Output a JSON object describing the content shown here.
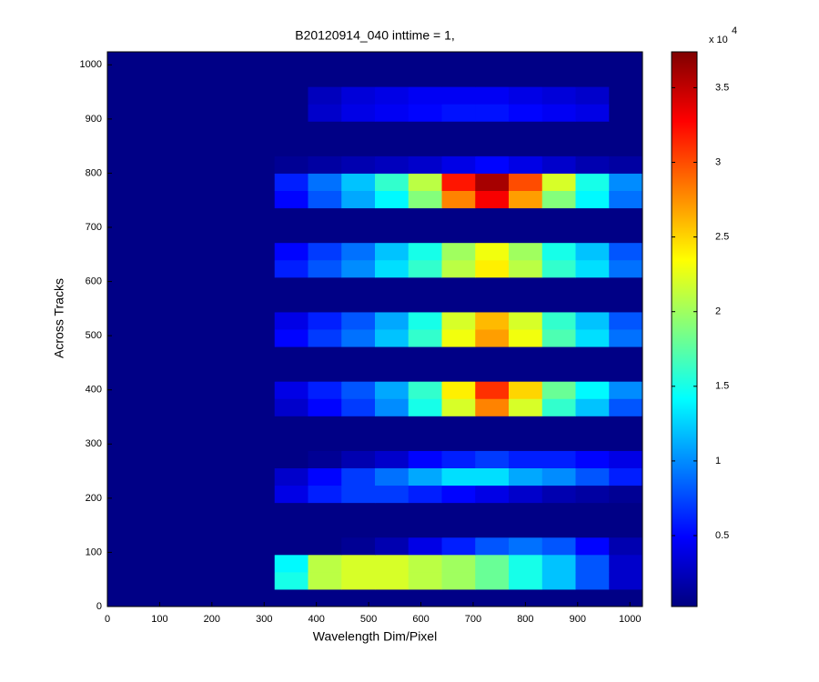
{
  "chart_data": {
    "type": "heatmap",
    "title": "B20120914_040 inttime = 1,",
    "xlabel": "Wavelength Dim/Pixel",
    "ylabel": "Across Tracks",
    "colormap": "jet",
    "colorbar_multiplier": "x 10",
    "colorbar_exponent": "4",
    "clim": [
      0.025,
      3.74
    ],
    "cticks": [
      0.5,
      1,
      1.5,
      2,
      2.5,
      3,
      3.5
    ],
    "xlim": [
      0,
      1024
    ],
    "ylim": [
      0,
      1024
    ],
    "xticks": [
      0,
      100,
      200,
      300,
      400,
      500,
      600,
      700,
      800,
      900,
      1000
    ],
    "yticks": [
      0,
      100,
      200,
      300,
      400,
      500,
      600,
      700,
      800,
      900,
      1000
    ],
    "x": [
      32,
      96,
      160,
      224,
      288,
      352,
      416,
      480,
      544,
      608,
      672,
      736,
      800,
      864,
      928,
      992
    ],
    "y": [
      16,
      48,
      80,
      112,
      144,
      176,
      208,
      240,
      272,
      304,
      336,
      368,
      400,
      432,
      464,
      496,
      528,
      560,
      592,
      624,
      656,
      688,
      720,
      752,
      784,
      816,
      848,
      880,
      912,
      944,
      976,
      1008
    ],
    "z": [
      [
        0.05,
        0.05,
        0.05,
        0.05,
        0.05,
        0.05,
        0.05,
        0.05,
        0.05,
        0.05,
        0.05,
        0.05,
        0.05,
        0.05,
        0.05,
        0.05
      ],
      [
        0.05,
        0.05,
        0.05,
        0.05,
        0.05,
        1.5,
        2.1,
        2.2,
        2.2,
        2.1,
        2.0,
        1.8,
        1.5,
        1.2,
        0.8,
        0.3
      ],
      [
        0.05,
        0.05,
        0.05,
        0.05,
        0.05,
        1.4,
        2.1,
        2.2,
        2.2,
        2.1,
        2.0,
        1.8,
        1.5,
        1.2,
        0.8,
        0.3
      ],
      [
        0.05,
        0.05,
        0.05,
        0.05,
        0.05,
        0.05,
        0.05,
        0.1,
        0.2,
        0.4,
        0.6,
        0.8,
        0.9,
        0.8,
        0.5,
        0.2
      ],
      [
        0.05,
        0.05,
        0.05,
        0.05,
        0.05,
        0.05,
        0.05,
        0.05,
        0.05,
        0.05,
        0.05,
        0.05,
        0.05,
        0.05,
        0.05,
        0.05
      ],
      [
        0.05,
        0.05,
        0.05,
        0.05,
        0.05,
        0.05,
        0.05,
        0.05,
        0.05,
        0.05,
        0.05,
        0.05,
        0.05,
        0.05,
        0.05,
        0.05
      ],
      [
        0.05,
        0.05,
        0.05,
        0.05,
        0.05,
        0.4,
        0.6,
        0.7,
        0.7,
        0.6,
        0.5,
        0.4,
        0.3,
        0.2,
        0.15,
        0.1
      ],
      [
        0.05,
        0.05,
        0.05,
        0.05,
        0.05,
        0.3,
        0.5,
        0.7,
        0.9,
        1.1,
        1.3,
        1.3,
        1.1,
        1.0,
        0.8,
        0.6
      ],
      [
        0.05,
        0.05,
        0.05,
        0.05,
        0.05,
        0.05,
        0.1,
        0.2,
        0.3,
        0.5,
        0.6,
        0.7,
        0.6,
        0.6,
        0.5,
        0.4
      ],
      [
        0.05,
        0.05,
        0.05,
        0.05,
        0.05,
        0.05,
        0.05,
        0.05,
        0.05,
        0.05,
        0.05,
        0.05,
        0.05,
        0.05,
        0.05,
        0.05
      ],
      [
        0.05,
        0.05,
        0.05,
        0.05,
        0.05,
        0.05,
        0.05,
        0.05,
        0.05,
        0.05,
        0.05,
        0.05,
        0.05,
        0.05,
        0.05,
        0.05
      ],
      [
        0.05,
        0.05,
        0.05,
        0.05,
        0.05,
        0.3,
        0.5,
        0.7,
        1.0,
        1.5,
        2.2,
        2.8,
        2.2,
        1.6,
        1.2,
        0.8
      ],
      [
        0.05,
        0.05,
        0.05,
        0.05,
        0.05,
        0.4,
        0.6,
        0.8,
        1.1,
        1.6,
        2.4,
        3.1,
        2.5,
        1.8,
        1.4,
        1.0
      ],
      [
        0.05,
        0.05,
        0.05,
        0.05,
        0.05,
        0.05,
        0.05,
        0.05,
        0.05,
        0.05,
        0.05,
        0.05,
        0.05,
        0.05,
        0.05,
        0.05
      ],
      [
        0.05,
        0.05,
        0.05,
        0.05,
        0.05,
        0.05,
        0.05,
        0.05,
        0.05,
        0.05,
        0.05,
        0.05,
        0.05,
        0.05,
        0.05,
        0.05
      ],
      [
        0.05,
        0.05,
        0.05,
        0.05,
        0.05,
        0.5,
        0.7,
        0.9,
        1.2,
        1.6,
        2.3,
        2.7,
        2.3,
        1.7,
        1.3,
        0.9
      ],
      [
        0.05,
        0.05,
        0.05,
        0.05,
        0.05,
        0.4,
        0.6,
        0.8,
        1.1,
        1.5,
        2.2,
        2.6,
        2.2,
        1.6,
        1.2,
        0.8
      ],
      [
        0.05,
        0.05,
        0.05,
        0.05,
        0.05,
        0.05,
        0.05,
        0.05,
        0.05,
        0.05,
        0.05,
        0.05,
        0.05,
        0.05,
        0.05,
        0.05
      ],
      [
        0.05,
        0.05,
        0.05,
        0.05,
        0.05,
        0.05,
        0.05,
        0.05,
        0.05,
        0.05,
        0.05,
        0.05,
        0.05,
        0.05,
        0.05,
        0.05
      ],
      [
        0.05,
        0.05,
        0.05,
        0.05,
        0.05,
        0.6,
        0.8,
        1.0,
        1.3,
        1.6,
        2.1,
        2.4,
        2.1,
        1.6,
        1.3,
        0.9
      ],
      [
        0.05,
        0.05,
        0.05,
        0.05,
        0.05,
        0.5,
        0.7,
        0.9,
        1.2,
        1.5,
        2.0,
        2.3,
        2.0,
        1.5,
        1.2,
        0.8
      ],
      [
        0.05,
        0.05,
        0.05,
        0.05,
        0.05,
        0.05,
        0.05,
        0.05,
        0.05,
        0.05,
        0.05,
        0.05,
        0.05,
        0.05,
        0.05,
        0.05
      ],
      [
        0.05,
        0.05,
        0.05,
        0.05,
        0.05,
        0.05,
        0.05,
        0.05,
        0.05,
        0.05,
        0.05,
        0.05,
        0.05,
        0.05,
        0.05,
        0.05
      ],
      [
        0.05,
        0.05,
        0.05,
        0.05,
        0.05,
        0.5,
        0.8,
        1.1,
        1.4,
        1.9,
        2.8,
        3.3,
        2.7,
        1.9,
        1.4,
        0.9
      ],
      [
        0.05,
        0.05,
        0.05,
        0.05,
        0.05,
        0.6,
        0.9,
        1.2,
        1.6,
        2.1,
        3.2,
        3.6,
        3.0,
        2.2,
        1.5,
        1.0
      ],
      [
        0.05,
        0.05,
        0.05,
        0.05,
        0.05,
        0.1,
        0.15,
        0.2,
        0.25,
        0.3,
        0.4,
        0.5,
        0.4,
        0.3,
        0.2,
        0.15
      ],
      [
        0.05,
        0.05,
        0.05,
        0.05,
        0.05,
        0.05,
        0.05,
        0.05,
        0.05,
        0.05,
        0.05,
        0.05,
        0.05,
        0.05,
        0.05,
        0.05
      ],
      [
        0.05,
        0.05,
        0.05,
        0.05,
        0.05,
        0.05,
        0.05,
        0.05,
        0.05,
        0.05,
        0.05,
        0.05,
        0.05,
        0.05,
        0.05,
        0.05
      ],
      [
        0.05,
        0.05,
        0.05,
        0.05,
        0.05,
        0.05,
        0.3,
        0.4,
        0.45,
        0.5,
        0.55,
        0.55,
        0.5,
        0.45,
        0.4,
        0.05
      ],
      [
        0.05,
        0.05,
        0.05,
        0.05,
        0.05,
        0.05,
        0.25,
        0.35,
        0.4,
        0.45,
        0.45,
        0.45,
        0.4,
        0.35,
        0.3,
        0.05
      ],
      [
        0.05,
        0.05,
        0.05,
        0.05,
        0.05,
        0.05,
        0.05,
        0.05,
        0.05,
        0.05,
        0.05,
        0.05,
        0.05,
        0.05,
        0.05,
        0.05
      ],
      [
        0.05,
        0.05,
        0.05,
        0.05,
        0.05,
        0.05,
        0.05,
        0.05,
        0.05,
        0.05,
        0.05,
        0.05,
        0.05,
        0.05,
        0.05,
        0.05
      ]
    ]
  }
}
